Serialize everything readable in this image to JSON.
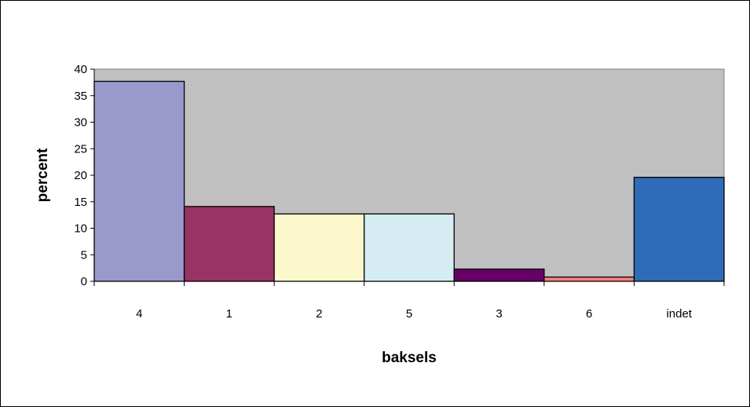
{
  "chart_data": {
    "type": "bar",
    "title": "",
    "xlabel": "baksels",
    "ylabel": "percent",
    "categories": [
      "4",
      "1",
      "2",
      "5",
      "3",
      "6",
      "indet"
    ],
    "values": [
      37.7,
      14.1,
      12.7,
      12.7,
      2.3,
      0.8,
      19.6
    ],
    "colors": [
      "#9999cc",
      "#993366",
      "#fbf8cc",
      "#d4ecf2",
      "#660066",
      "#ff8080",
      "#2e6cb8"
    ],
    "ylim": [
      0,
      40
    ],
    "yticks": [
      0,
      5,
      10,
      15,
      20,
      25,
      30,
      35,
      40
    ],
    "plot_background": "#c0c0c0",
    "grid": false,
    "legend": "none"
  }
}
